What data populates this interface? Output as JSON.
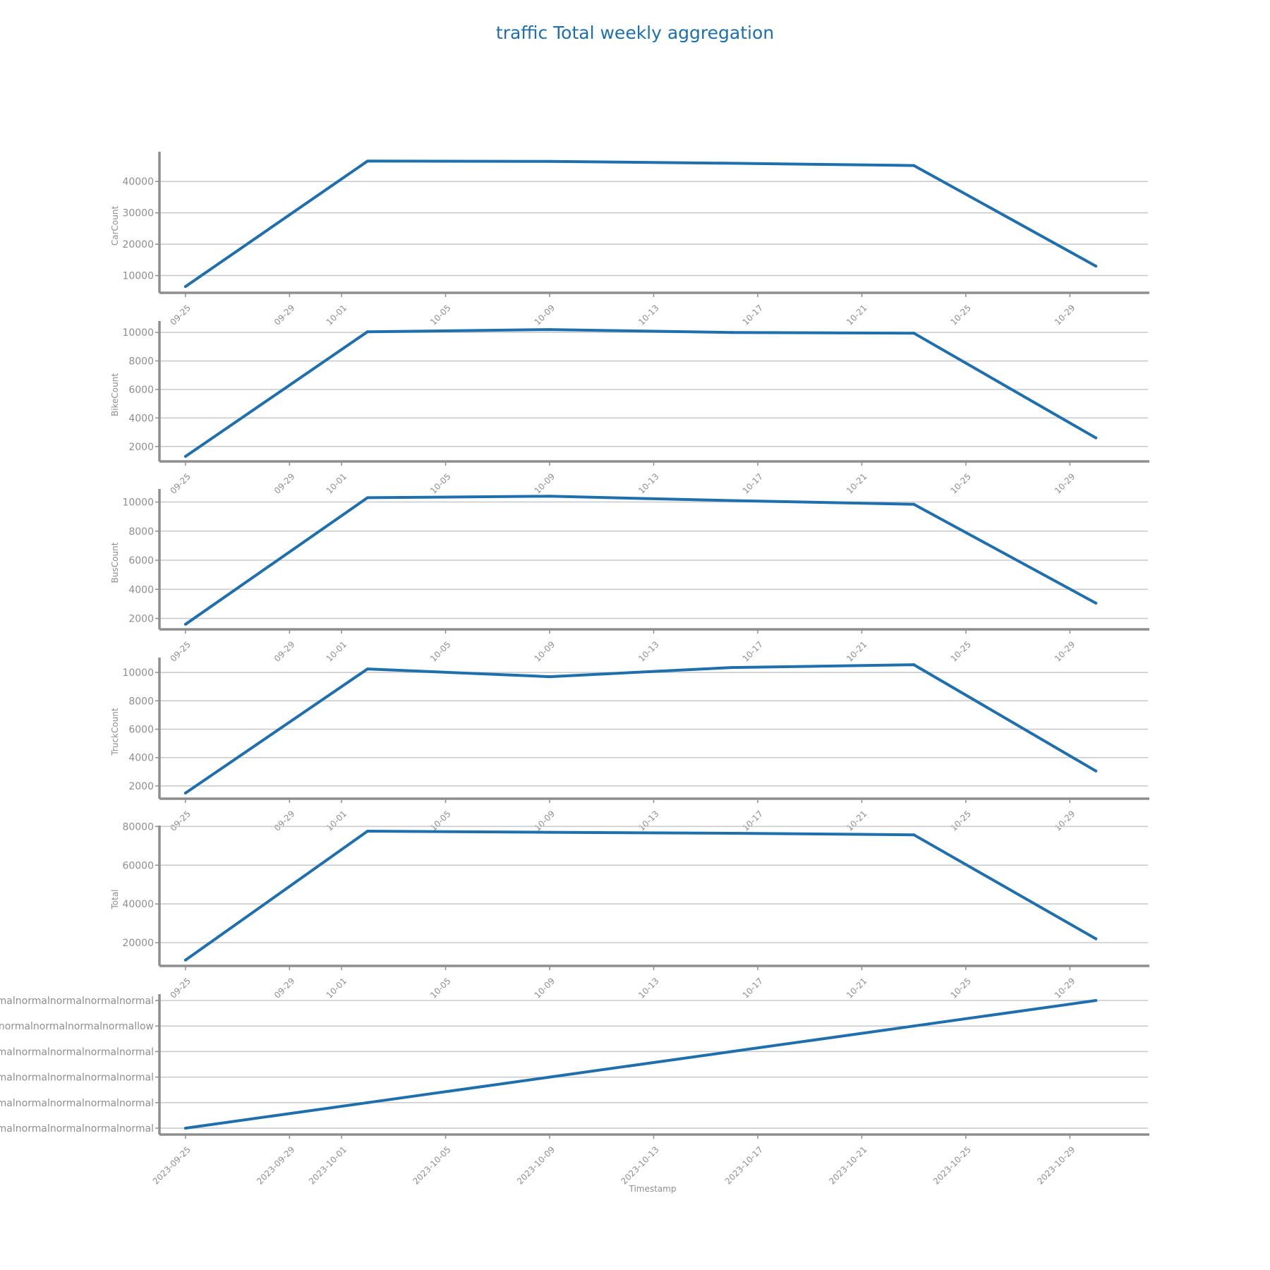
{
  "chart_data": {
    "type": "line",
    "title": "traffic Total weekly aggregation",
    "xlabel": "Timestamp",
    "line_color": "#1f6fad",
    "axis_color": "#8e8e8e",
    "grid_color": "#c8c8c8",
    "x_range": [
      "2023-09-24",
      "2023-11-01"
    ],
    "x": [
      "2023-09-25",
      "2023-10-02",
      "2023-10-09",
      "2023-10-16",
      "2023-10-23",
      "2023-10-30"
    ],
    "x_ticks": [
      "2023-09-25",
      "2023-09-29",
      "2023-10-01",
      "2023-10-05",
      "2023-10-09",
      "2023-10-13",
      "2023-10-17",
      "2023-10-21",
      "2023-10-25",
      "2023-10-29"
    ],
    "x_tick_labels_short": [
      "09-25",
      "09-29",
      "10-01",
      "10-05",
      "10-09",
      "10-13",
      "10-17",
      "10-21",
      "10-25",
      "10-29"
    ],
    "x_tick_labels_full": [
      "2023-09-25",
      "2023-09-29",
      "2023-10-01",
      "2023-10-05",
      "2023-10-09",
      "2023-10-13",
      "2023-10-17",
      "2023-10-21",
      "2023-10-25",
      "2023-10-29"
    ],
    "panels": [
      {
        "ylabel": "CarCount",
        "ylim": [
          4500,
          49500
        ],
        "yticks": [
          10000,
          20000,
          30000,
          40000
        ],
        "ytick_labels": [
          "10000",
          "20000",
          "30000",
          "40000"
        ],
        "values": [
          6500,
          46500,
          46400,
          45800,
          45100,
          13000
        ]
      },
      {
        "ylabel": "BikeCount",
        "ylim": [
          950,
          10800
        ],
        "yticks": [
          2000,
          4000,
          6000,
          8000,
          10000
        ],
        "ytick_labels": [
          "2000",
          "4000",
          "6000",
          "8000",
          "10000"
        ],
        "values": [
          1300,
          10050,
          10200,
          10000,
          9950,
          2600
        ]
      },
      {
        "ylabel": "BusCount",
        "ylim": [
          1250,
          10900
        ],
        "yticks": [
          2000,
          4000,
          6000,
          8000,
          10000
        ],
        "ytick_labels": [
          "2000",
          "4000",
          "6000",
          "8000",
          "10000"
        ],
        "values": [
          1600,
          10300,
          10400,
          10100,
          9850,
          3050
        ]
      },
      {
        "ylabel": "TruckCount",
        "ylim": [
          1100,
          11050
        ],
        "yticks": [
          2000,
          4000,
          6000,
          8000,
          10000
        ],
        "ytick_labels": [
          "2000",
          "4000",
          "6000",
          "8000",
          "10000"
        ],
        "values": [
          1500,
          10250,
          9700,
          10350,
          10550,
          3050
        ]
      },
      {
        "ylabel": "Total",
        "ylim": [
          8000,
          80500
        ],
        "yticks": [
          20000,
          40000,
          60000,
          80000
        ],
        "ytick_labels": [
          "20000",
          "40000",
          "60000",
          "80000"
        ],
        "values": [
          11000,
          77600,
          77000,
          76500,
          75700,
          22000
        ]
      },
      {
        "ylabel": "",
        "categorical": true,
        "ylim": [
          -0.25,
          5.25
        ],
        "yticks": [
          0,
          1,
          2,
          3,
          4,
          5
        ],
        "ytick_labels": [
          "normalnormalnormalnormalnormalnormalnormal",
          "normalnormalnormalnormalnormalnormalnormal",
          "normalnormalnormalnormalnormalnormalnormal",
          "normalnormalnormalnormalnormalnormalnormal",
          "normalnormalnormalnormalnormalnormallow",
          "normalnormalnormalnormalnormalnormalnormal"
        ],
        "values": [
          0,
          1,
          2,
          3,
          4,
          5
        ]
      }
    ]
  }
}
